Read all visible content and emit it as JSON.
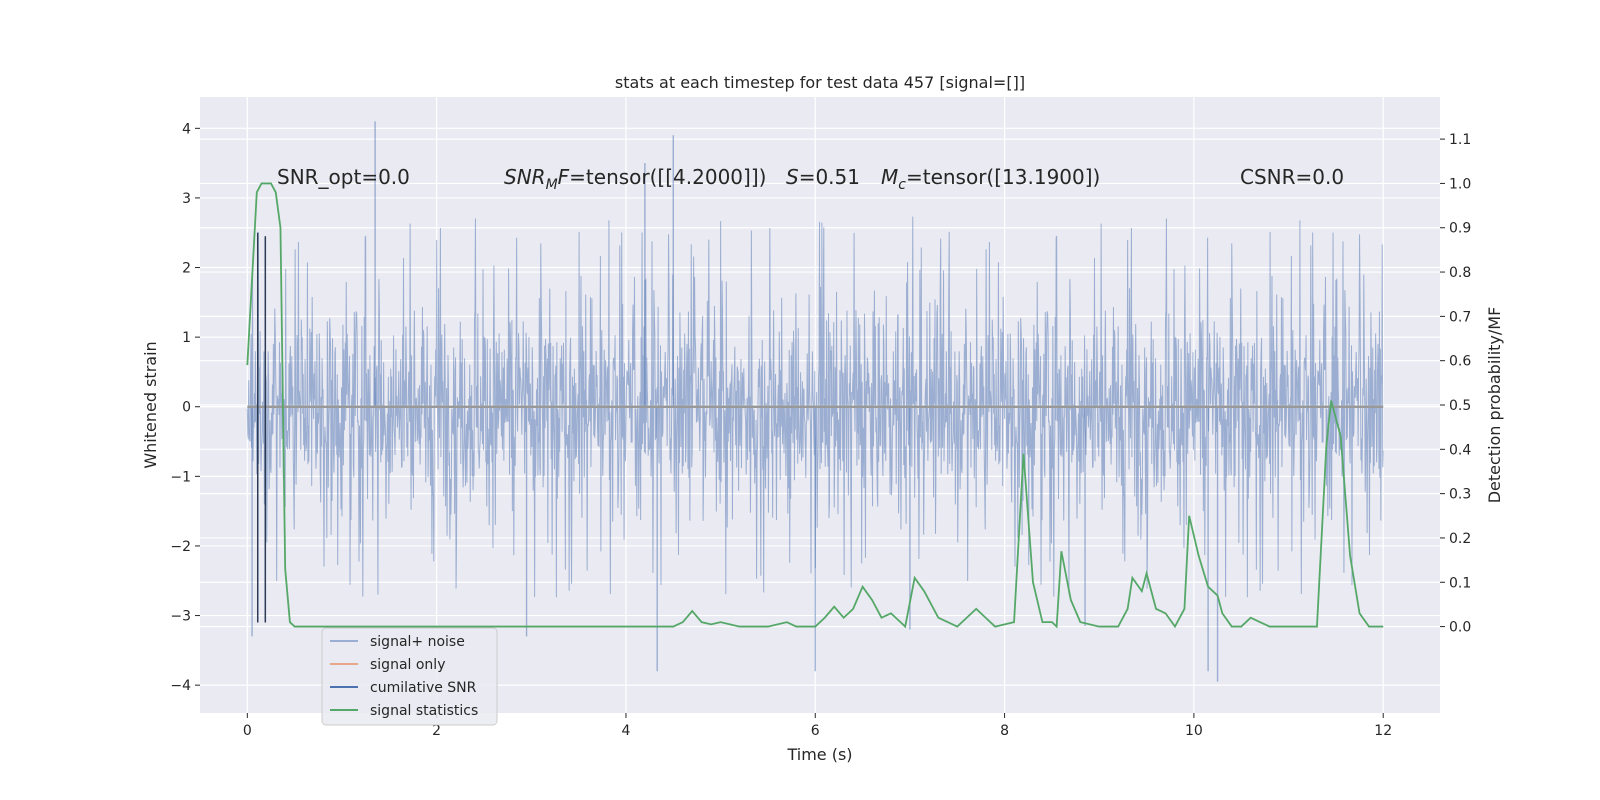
{
  "chart_data": {
    "type": "line",
    "title": "stats at each timestep for test data 457 [signal=[]]",
    "xlabel": "Time (s)",
    "ylabel_left": "Whitened strain",
    "ylabel_right": "Detection probability/MF",
    "xlim": [
      -0.5,
      12.6
    ],
    "ylim_left": [
      -4.4,
      4.45
    ],
    "ylim_right": [
      -0.195,
      1.195
    ],
    "x_ticks": [
      "0",
      "2",
      "4",
      "6",
      "8",
      "10",
      "12"
    ],
    "y_left_ticks": [
      "4",
      "3",
      "2",
      "1",
      "0",
      "−1",
      "−2",
      "−3",
      "−4"
    ],
    "y_right_ticks": [
      "1.1",
      "1.0",
      "0.9",
      "0.8",
      "0.7",
      "0.6",
      "0.5",
      "0.4",
      "0.3",
      "0.2",
      "0.1",
      "0.0"
    ],
    "grid": true,
    "legend_position": "lower-left",
    "background": "#eaeaf2",
    "annotations": {
      "snr_opt": "SNR_opt=0.0",
      "snr_mf_var": "SNR",
      "snr_mf_sub": "M",
      "snr_mf_var2": "F",
      "snr_mf_rest": "=tensor([[4.2000]])",
      "s_var": "S",
      "s_rest": "=0.51",
      "mc_var": "M",
      "mc_sub": "c",
      "mc_rest": "=tensor([13.1900])",
      "csnr": "CSNR=0.0"
    },
    "series": [
      {
        "name": "signal+ noise",
        "axis": "left",
        "color": "#4c72b0",
        "alpha": 0.5,
        "duration": 12,
        "typical_amplitude": 1.3,
        "envelope_peak_amplitude": 2.8,
        "spikes": [
          {
            "x": 1.35,
            "y": 4.1
          },
          {
            "x": 4.5,
            "y": 3.9
          },
          {
            "x": 4.2,
            "y": 3.5
          },
          {
            "x": 0.05,
            "y": -3.3
          },
          {
            "x": 4.33,
            "y": -3.8
          },
          {
            "x": 6.0,
            "y": -3.8
          },
          {
            "x": 10.15,
            "y": -3.8
          },
          {
            "x": 10.25,
            "y": -3.95
          },
          {
            "x": 2.95,
            "y": -3.3
          },
          {
            "x": 7.0,
            "y": -3.2
          },
          {
            "x": 8.85,
            "y": -3.15
          }
        ]
      },
      {
        "name": "signal only",
        "axis": "left",
        "color": "#dd8452",
        "x": [
          0,
          12
        ],
        "y": [
          0,
          0
        ]
      },
      {
        "name": "cumilative SNR",
        "axis": "left",
        "color": "#4c72b0",
        "x": [
          0.11,
          0.11,
          0.19,
          0.19
        ],
        "y": [
          2.5,
          -3.1,
          2.45,
          -3.1
        ]
      },
      {
        "name": "signal statistics",
        "axis": "right",
        "color": "#55a868",
        "x": [
          0,
          0.1,
          0.15,
          0.2,
          0.25,
          0.3,
          0.35,
          0.4,
          0.45,
          0.5,
          0.6,
          0.8,
          1.0,
          1.5,
          2.0,
          2.5,
          3.0,
          3.5,
          4.0,
          4.3,
          4.5,
          4.6,
          4.7,
          4.8,
          4.9,
          5.0,
          5.2,
          5.5,
          5.7,
          5.8,
          5.9,
          6.0,
          6.1,
          6.2,
          6.3,
          6.4,
          6.5,
          6.6,
          6.7,
          6.8,
          6.9,
          6.95,
          7.05,
          7.15,
          7.3,
          7.5,
          7.6,
          7.7,
          7.8,
          7.9,
          8.0,
          8.1,
          8.2,
          8.3,
          8.4,
          8.5,
          8.55,
          8.6,
          8.7,
          8.8,
          9.0,
          9.2,
          9.3,
          9.35,
          9.45,
          9.5,
          9.6,
          9.7,
          9.8,
          9.9,
          9.95,
          10.05,
          10.15,
          10.25,
          10.3,
          10.4,
          10.5,
          10.6,
          10.7,
          10.8,
          11.0,
          11.2,
          11.3,
          11.4,
          11.45,
          11.55,
          11.65,
          11.75,
          11.85,
          12.0
        ],
        "y": [
          0.59,
          0.98,
          1.0,
          1.0,
          1.0,
          0.98,
          0.9,
          0.13,
          0.01,
          0.0,
          0.0,
          0.0,
          0.0,
          0.0,
          0.0,
          0.0,
          0.0,
          0.0,
          0.0,
          0.0,
          0.0,
          0.01,
          0.035,
          0.01,
          0.005,
          0.01,
          0.0,
          0.0,
          0.01,
          0.0,
          0.0,
          0.0,
          0.02,
          0.045,
          0.02,
          0.04,
          0.09,
          0.06,
          0.02,
          0.03,
          0.01,
          0.0,
          0.11,
          0.08,
          0.02,
          0.0,
          0.02,
          0.04,
          0.02,
          0.0,
          0.005,
          0.01,
          0.39,
          0.1,
          0.01,
          0.01,
          0.0,
          0.17,
          0.06,
          0.01,
          0.0,
          0.0,
          0.04,
          0.11,
          0.08,
          0.12,
          0.04,
          0.03,
          0.0,
          0.04,
          0.25,
          0.16,
          0.09,
          0.07,
          0.03,
          0.0,
          0.0,
          0.02,
          0.01,
          0.0,
          0.0,
          0.0,
          0.0,
          0.41,
          0.51,
          0.43,
          0.16,
          0.03,
          0.0,
          0.0
        ]
      }
    ]
  }
}
